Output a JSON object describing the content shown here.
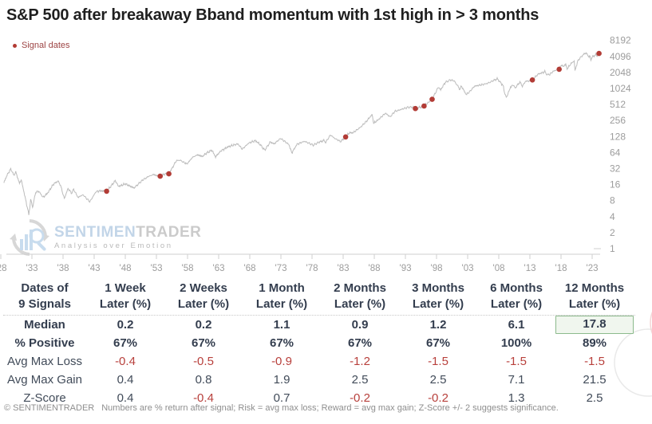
{
  "title": "S&P 500 after breakaway Bband momentum with 1st high in > 3 months",
  "legend": {
    "label": "Signal dates"
  },
  "watermark": {
    "brand_left": "SENTIMEN",
    "brand_right": "TRADER",
    "tagline": "Analysis over Emotion"
  },
  "colors": {
    "line": "#bcbcbc",
    "signal_dot": "#b23c36",
    "axis_label": "#9c9c9c",
    "axis_line": "#cfcfcf",
    "table_navy": "#333d4e",
    "negative_red": "#b8403c",
    "highlight_green_border": "#8cba8c",
    "highlight_green_bg": "#f0f6ee",
    "legend_red": "#9d4444"
  },
  "chart_data": {
    "type": "line",
    "title": "S&P 500 price (log scale) with signal dates",
    "y_scale": "log2",
    "grid": false,
    "legend_position": "top-left",
    "x_range": [
      1928.5,
      2024.3
    ],
    "y_ticks": [
      8192,
      4096,
      2048,
      1024,
      512,
      256,
      128,
      64,
      32,
      16,
      8,
      4,
      2,
      1
    ],
    "x_tick_years": [
      1928,
      1933,
      1938,
      1943,
      1948,
      1953,
      1958,
      1963,
      1968,
      1973,
      1978,
      1983,
      1988,
      1993,
      1998,
      2003,
      2008,
      2013,
      2018,
      2023
    ],
    "x_tick_labels": [
      "'28",
      "'33",
      "'38",
      "'43",
      "'48",
      "'53",
      "'58",
      "'63",
      "'68",
      "'73",
      "'78",
      "'83",
      "'88",
      "'93",
      "'98",
      "'03",
      "'08",
      "'13",
      "'18",
      "'23"
    ],
    "series": [
      {
        "name": "S&P 500",
        "points": [
          [
            1928.5,
            17.5
          ],
          [
            1929.0,
            24
          ],
          [
            1929.6,
            31.5
          ],
          [
            1930.1,
            24
          ],
          [
            1930.4,
            27.5
          ],
          [
            1931.0,
            17
          ],
          [
            1931.3,
            19.5
          ],
          [
            1932.5,
            4.4
          ],
          [
            1932.8,
            8.5
          ],
          [
            1933.1,
            5.9
          ],
          [
            1933.6,
            11.5
          ],
          [
            1934.1,
            12
          ],
          [
            1934.8,
            9.2
          ],
          [
            1935.5,
            11
          ],
          [
            1936.5,
            16.5
          ],
          [
            1937.2,
            18.6
          ],
          [
            1937.6,
            15.5
          ],
          [
            1938.2,
            8.7
          ],
          [
            1938.8,
            13.5
          ],
          [
            1939.4,
            11
          ],
          [
            1939.7,
            13
          ],
          [
            1940.4,
            9.2
          ],
          [
            1941.2,
            10.3
          ],
          [
            1942.3,
            7.6
          ],
          [
            1943.3,
            11.8
          ],
          [
            1944.0,
            12.2
          ],
          [
            1945.0,
            12
          ],
          [
            1945.9,
            16
          ],
          [
            1946.4,
            19
          ],
          [
            1946.9,
            14.8
          ],
          [
            1948.0,
            16.5
          ],
          [
            1949.4,
            13.8
          ],
          [
            1950.8,
            19.5
          ],
          [
            1951.8,
            23
          ],
          [
            1952.6,
            24.8
          ],
          [
            1953.1,
            23.3
          ],
          [
            1953.6,
            23
          ],
          [
            1954.4,
            25.5
          ],
          [
            1955.0,
            25.5
          ],
          [
            1956.2,
            45
          ],
          [
            1956.8,
            46
          ],
          [
            1957.2,
            43
          ],
          [
            1957.9,
            39
          ],
          [
            1958.8,
            52
          ],
          [
            1959.6,
            58
          ],
          [
            1960.4,
            54
          ],
          [
            1961.0,
            62
          ],
          [
            1961.9,
            71
          ],
          [
            1962.5,
            53
          ],
          [
            1963.3,
            68
          ],
          [
            1964.5,
            82
          ],
          [
            1965.6,
            90
          ],
          [
            1966.1,
            93
          ],
          [
            1966.8,
            74
          ],
          [
            1967.8,
            96
          ],
          [
            1968.9,
            107
          ],
          [
            1969.6,
            92
          ],
          [
            1970.4,
            71
          ],
          [
            1971.3,
            101
          ],
          [
            1971.9,
            93
          ],
          [
            1972.95,
            118
          ],
          [
            1973.8,
            100
          ],
          [
            1974.3,
            90
          ],
          [
            1974.75,
            63
          ],
          [
            1975.6,
            92
          ],
          [
            1976.8,
            104
          ],
          [
            1978.2,
            88
          ],
          [
            1979.1,
            100
          ],
          [
            1979.9,
            108
          ],
          [
            1980.2,
            100
          ],
          [
            1980.95,
            137
          ],
          [
            1981.7,
            117
          ],
          [
            1982.6,
            103
          ],
          [
            1983.4,
            126
          ],
          [
            1984.0,
            150
          ],
          [
            1984.6,
            151
          ],
          [
            1985.8,
            192
          ],
          [
            1986.8,
            252
          ],
          [
            1987.65,
            332
          ],
          [
            1987.9,
            227
          ],
          [
            1988.6,
            262
          ],
          [
            1989.8,
            352
          ],
          [
            1990.55,
            300
          ],
          [
            1991.3,
            380
          ],
          [
            1992.3,
            412
          ],
          [
            1993.3,
            450
          ],
          [
            1994.1,
            458
          ],
          [
            1994.6,
            430
          ],
          [
            1995.4,
            455
          ],
          [
            1996.0,
            480
          ],
          [
            1996.7,
            560
          ],
          [
            1997.3,
            640
          ],
          [
            1998.3,
            1090
          ],
          [
            1998.65,
            960
          ],
          [
            1999.4,
            1330
          ],
          [
            2000.2,
            1480
          ],
          [
            2000.8,
            1430
          ],
          [
            2001.2,
            1240
          ],
          [
            2001.75,
            990
          ],
          [
            2002.0,
            1140
          ],
          [
            2002.75,
            790
          ],
          [
            2003.2,
            860
          ],
          [
            2004.1,
            1130
          ],
          [
            2005.1,
            1190
          ],
          [
            2006.3,
            1290
          ],
          [
            2007.1,
            1440
          ],
          [
            2007.75,
            1550
          ],
          [
            2008.3,
            1330
          ],
          [
            2008.75,
            1120
          ],
          [
            2008.9,
            890
          ],
          [
            2009.2,
            680
          ],
          [
            2009.9,
            1090
          ],
          [
            2010.35,
            1200
          ],
          [
            2010.6,
            1040
          ],
          [
            2011.4,
            1350
          ],
          [
            2011.8,
            1130
          ],
          [
            2012.3,
            1400
          ],
          [
            2012.8,
            1410
          ],
          [
            2013.4,
            1480
          ],
          [
            2014.3,
            1900
          ],
          [
            2015.4,
            2110
          ],
          [
            2015.7,
            1890
          ],
          [
            2016.1,
            1850
          ],
          [
            2016.8,
            2180
          ],
          [
            2017.7,
            2350
          ],
          [
            2018.05,
            2860
          ],
          [
            2018.3,
            2620
          ],
          [
            2018.75,
            2920
          ],
          [
            2018.98,
            2380
          ],
          [
            2019.6,
            3000
          ],
          [
            2020.12,
            3380
          ],
          [
            2020.25,
            2250
          ],
          [
            2020.7,
            3350
          ],
          [
            2021.0,
            3800
          ],
          [
            2021.45,
            4250
          ],
          [
            2021.9,
            4780
          ],
          [
            2022.3,
            4350
          ],
          [
            2022.5,
            3950
          ],
          [
            2022.65,
            4250
          ],
          [
            2022.8,
            3600
          ],
          [
            2023.1,
            4050
          ],
          [
            2023.4,
            4200
          ],
          [
            2023.6,
            4500
          ],
          [
            2023.8,
            4150
          ],
          [
            2024.1,
            4650
          ]
        ]
      }
    ],
    "signals": [
      [
        1945.0,
        12
      ],
      [
        1953.6,
        23
      ],
      [
        1955.0,
        25.5
      ],
      [
        1983.4,
        126
      ],
      [
        1994.6,
        430
      ],
      [
        1996.0,
        480
      ],
      [
        1997.3,
        640
      ],
      [
        2013.4,
        1480
      ],
      [
        2017.7,
        2350
      ],
      [
        2024.1,
        4650
      ]
    ]
  },
  "table": {
    "header": {
      "col0_line1": "Dates of",
      "col0_line2": "9 Signals",
      "columns": [
        {
          "line1": "1 Week",
          "line2": "Later (%)"
        },
        {
          "line1": "2 Weeks",
          "line2": "Later (%)"
        },
        {
          "line1": "1 Month",
          "line2": "Later (%)"
        },
        {
          "line1": "2 Months",
          "line2": "Later (%)"
        },
        {
          "line1": "3 Months",
          "line2": "Later (%)"
        },
        {
          "line1": "6 Months",
          "line2": "Later (%)"
        },
        {
          "line1": "12 Months",
          "line2": "Later (%)"
        }
      ]
    },
    "rows": [
      {
        "label": "Median",
        "values": [
          "0.2",
          "0.2",
          "1.1",
          "0.9",
          "1.2",
          "6.1",
          "17.8"
        ],
        "bold": true,
        "highlight_last": true
      },
      {
        "label": "% Positive",
        "values": [
          "67%",
          "67%",
          "67%",
          "67%",
          "67%",
          "100%",
          "89%"
        ],
        "bold": true
      },
      {
        "label": "Avg Max Loss",
        "values": [
          "-0.4",
          "-0.5",
          "-0.9",
          "-1.2",
          "-1.5",
          "-1.5",
          "-1.5"
        ]
      },
      {
        "label": "Avg Max Gain",
        "values": [
          "0.4",
          "0.8",
          "1.9",
          "2.5",
          "2.5",
          "7.1",
          "21.5"
        ]
      },
      {
        "label": "Z-Score",
        "values": [
          "0.4",
          "-0.4",
          "0.7",
          "-0.2",
          "-0.2",
          "1.3",
          "2.5"
        ]
      }
    ]
  },
  "footer": {
    "brand": "© SENTIMENTRADER",
    "note": "Numbers are % return after signal; Risk = avg max loss; Reward = avg max gain; Z-Score +/- 2 suggests significance."
  }
}
